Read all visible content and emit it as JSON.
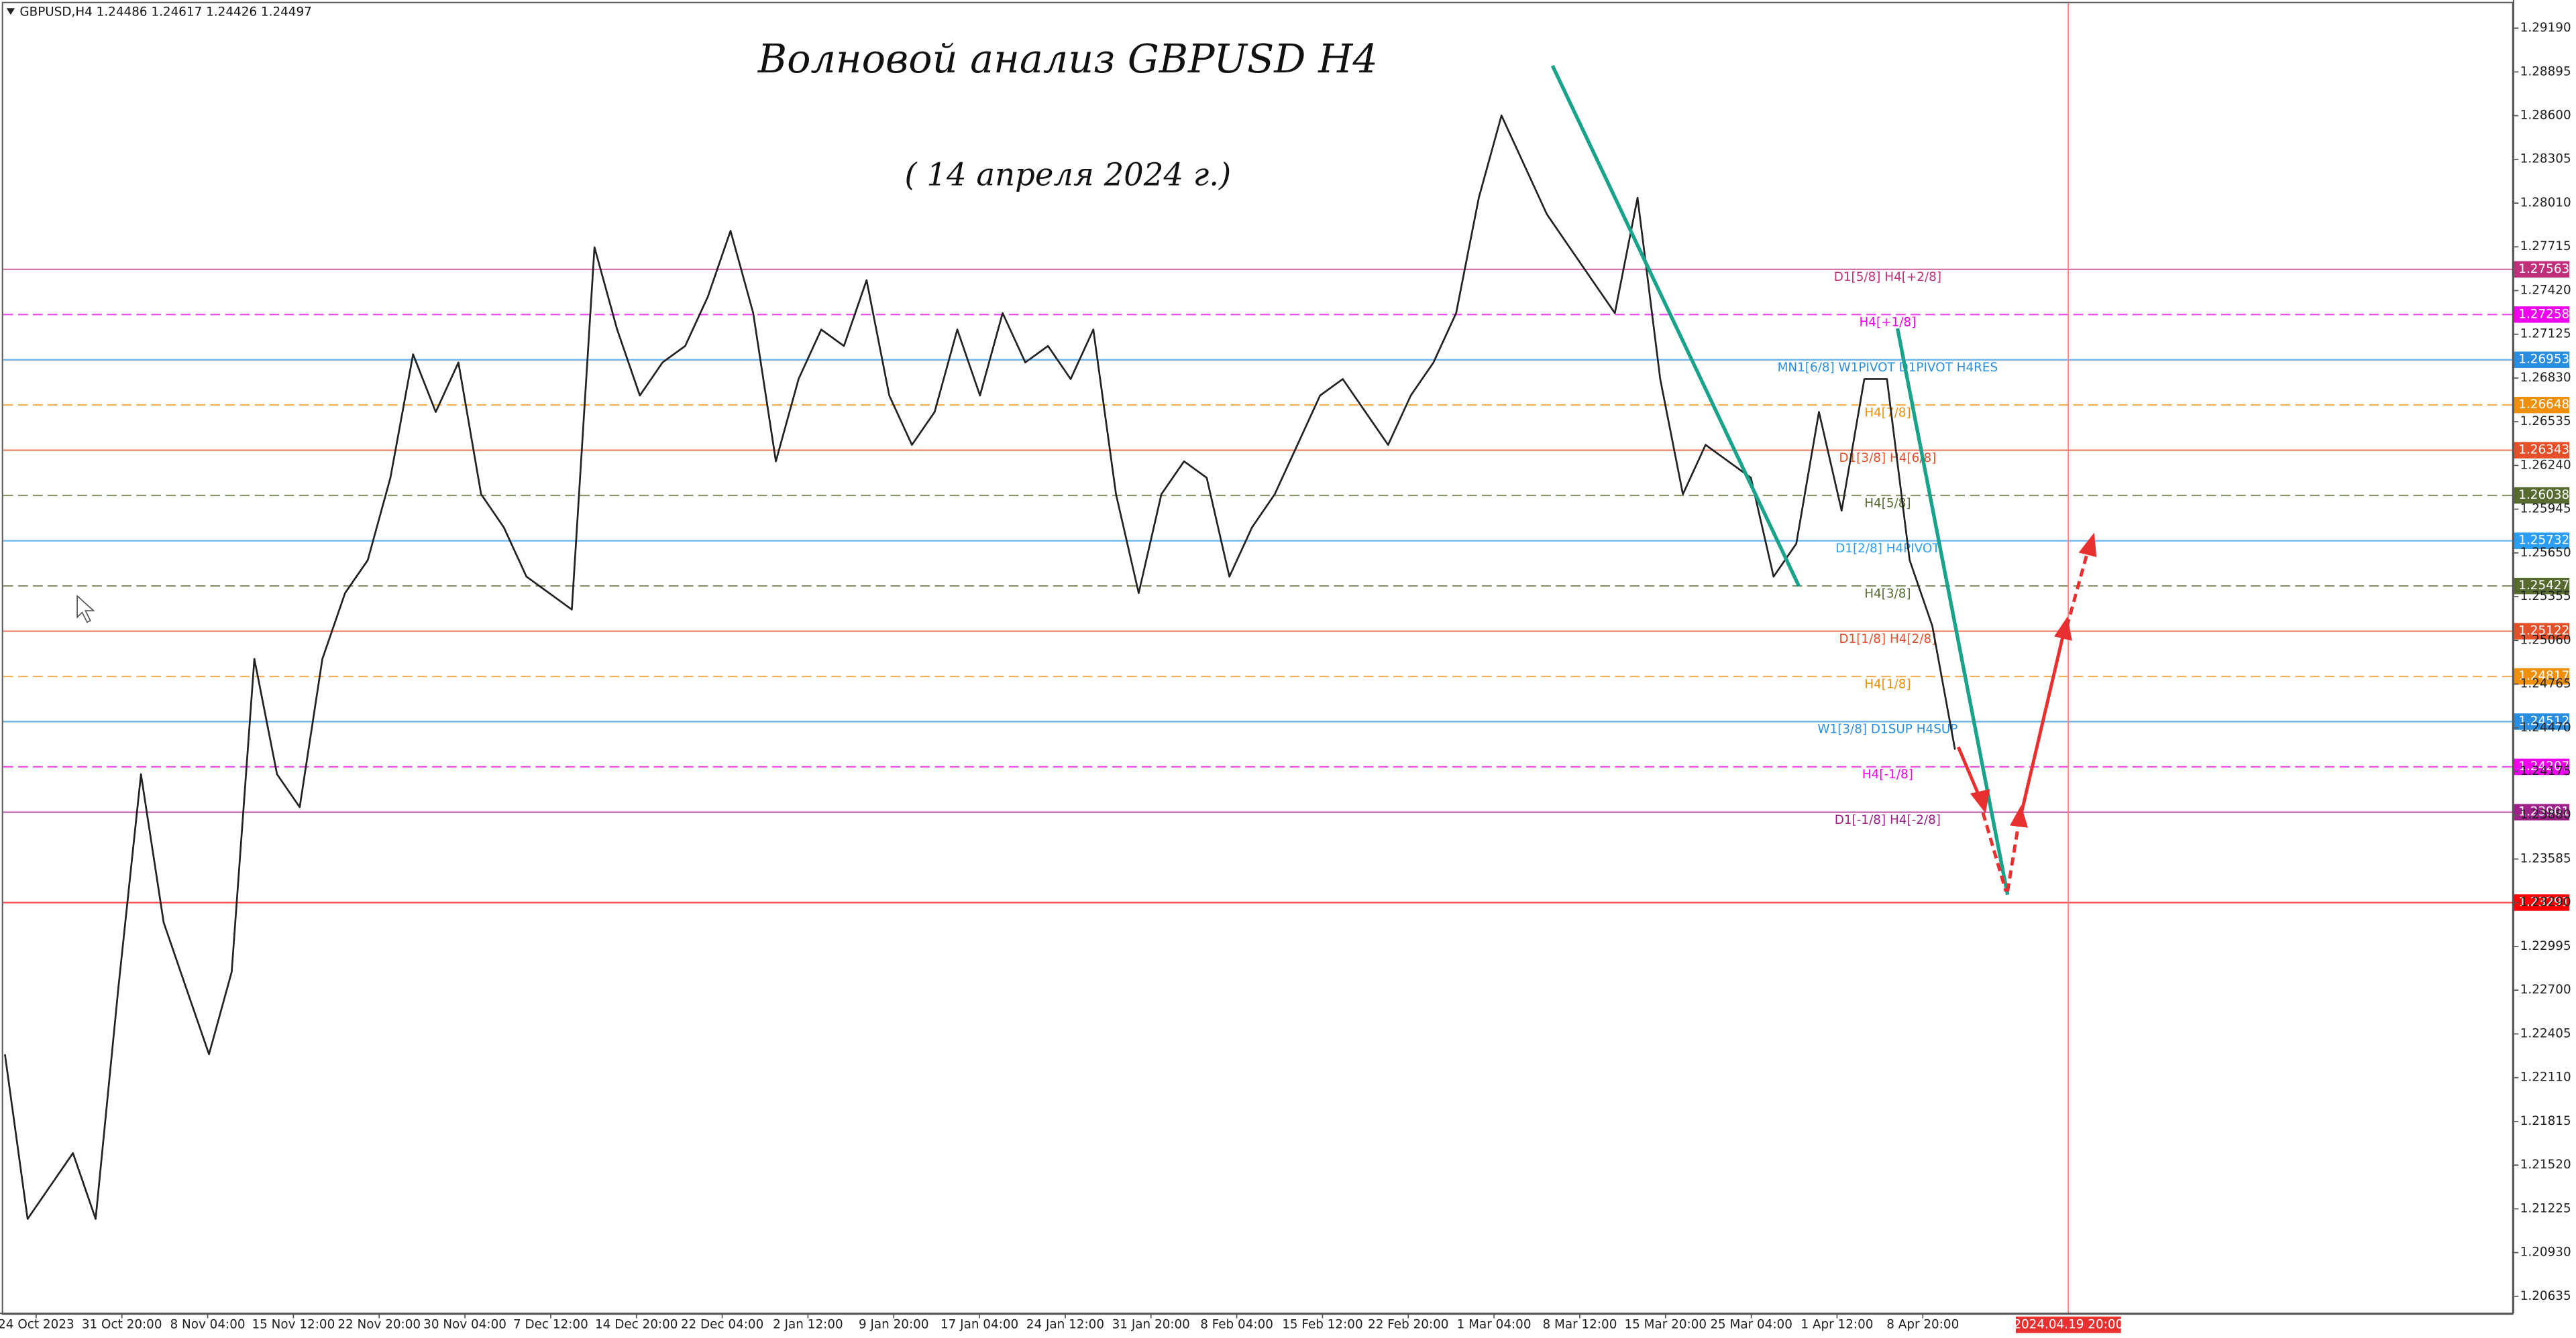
{
  "chart_data": {
    "type": "line",
    "header": "GBPUSD,H4  1.24486 1.24617 1.24426 1.24497",
    "title": "Волновой анализ GBPUSD H4",
    "subtitle": "( 14 апреля 2024 г.)",
    "color": "#222222",
    "values": [
      1.22268,
      1.21157,
      1.21379,
      1.21601,
      1.21157,
      1.22712,
      1.24157,
      1.23157,
      1.22712,
      1.22268,
      1.22823,
      1.24935,
      1.24157,
      1.23935,
      1.24935,
      1.25379,
      1.25601,
      1.26157,
      1.2699,
      1.26601,
      1.26935,
      1.26046,
      1.25823,
      1.2549,
      1.25379,
      1.25268,
      1.27712,
      1.27157,
      1.26712,
      1.26935,
      1.27046,
      1.27379,
      1.27823,
      1.27268,
      1.26268,
      1.26823,
      1.27157,
      1.27046,
      1.2749,
      1.26712,
      1.26379,
      1.26601,
      1.27157,
      1.26712,
      1.27268,
      1.26935,
      1.27046,
      1.26823,
      1.27157,
      1.26046,
      1.25379,
      1.26046,
      1.26268,
      1.26157,
      1.2549,
      1.25823,
      1.26046,
      1.26379,
      1.26712,
      1.26823,
      1.26601,
      1.26379,
      1.26712,
      1.26935,
      1.27268,
      1.28046,
      1.28601,
      1.28268,
      1.27935,
      1.27712,
      1.2749,
      1.27268,
      1.28046,
      1.26823,
      1.26046,
      1.26379,
      1.26268,
      1.26157,
      1.2549,
      1.25712,
      1.26601,
      1.25935,
      1.26823,
      1.26823,
      1.25601,
      1.25157,
      1.24323
    ],
    "ylim": [
      1.2052,
      1.2938
    ],
    "yticks": [
      {
        "value": 1.2919,
        "label": "1.29190"
      },
      1.28895,
      {
        "value": 1.286,
        "label": "1.28600"
      },
      1.28305,
      {
        "value": 1.2801,
        "label": "1.28010"
      },
      1.27715,
      {
        "value": 1.2742,
        "label": "1.27420"
      },
      1.27125,
      {
        "value": 1.2683,
        "label": "1.26830"
      },
      1.26535,
      {
        "value": 1.2624,
        "label": "1.26240"
      },
      1.25945,
      {
        "value": 1.2565,
        "label": "1.25650"
      },
      1.25355,
      {
        "value": 1.2506,
        "label": "1.25060"
      },
      1.24765,
      {
        "value": 1.2447,
        "label": "1.24470"
      },
      1.24175,
      {
        "value": 1.2388,
        "label": "1.23880"
      },
      1.23585,
      {
        "value": 1.2329,
        "label": "1.23290"
      },
      1.22995,
      {
        "value": 1.227,
        "label": "1.22700"
      },
      1.22405,
      {
        "value": 1.2211,
        "label": "1.22110"
      },
      1.21815,
      {
        "value": 1.2152,
        "label": "1.21520"
      },
      1.21225,
      {
        "value": 1.2093,
        "label": "1.20930"
      },
      1.20635
    ],
    "x_axis_labels": [
      "24 Oct 2023",
      "31 Oct 20:00",
      "8 Nov 04:00",
      "15 Nov 12:00",
      "22 Nov 20:00",
      "30 Nov 04:00",
      "7 Dec 12:00",
      "14 Dec 20:00",
      "22 Dec 04:00",
      "2 Jan 12:00",
      "9 Jan 20:00",
      "17 Jan 04:00",
      "24 Jan 12:00",
      "31 Jan 20:00",
      "8 Feb 04:00",
      "15 Feb 12:00",
      "22 Feb 20:00",
      "1 Mar 04:00",
      "8 Mar 12:00",
      "15 Mar 20:00",
      "25 Mar 04:00",
      "1 Apr 12:00",
      "8 Apr 20:00"
    ],
    "cursor_time": "2024.04.19 20:00",
    "levels": [
      {
        "value": 1.27563,
        "label": "D1[5/8] H4[+2/8]",
        "color": "#c0307a",
        "dashed": false
      },
      {
        "value": 1.27258,
        "label": "H4[+1/8]",
        "color": "#ee00ee",
        "dashed": true
      },
      {
        "value": 1.26953,
        "label": "MN1[6/8] W1PIVOT D1PIVOT H4RES",
        "color": "#2a8ee0",
        "dashed": false
      },
      {
        "value": 1.26648,
        "label": "H4[7/8]",
        "color": "#f0900a",
        "dashed": true
      },
      {
        "value": 1.26343,
        "label": "D1[3/8] H4[6/8]",
        "color": "#e4502a",
        "dashed": false
      },
      {
        "value": 1.26038,
        "label": "H4[5/8]",
        "color": "#556b2f",
        "dashed": true
      },
      {
        "value": 1.25732,
        "label": "D1[2/8] H4PIVOT",
        "color": "#2a9df4",
        "dashed": false
      },
      {
        "value": 1.25427,
        "label": "H4[3/8]",
        "color": "#556b2f",
        "dashed": true
      },
      {
        "value": 1.25122,
        "label": "D1[1/8] H4[2/8]",
        "color": "#e4502a",
        "dashed": false
      },
      {
        "value": 1.24817,
        "label": "H4[1/8]",
        "color": "#f0900a",
        "dashed": true
      },
      {
        "value": 1.24512,
        "label": "W1[3/8] D1SUP H4SUP",
        "color": "#2a8ee0",
        "dashed": false
      },
      {
        "value": 1.24207,
        "label": "H4[-1/8]",
        "color": "#ee00ee",
        "dashed": true
      },
      {
        "value": 1.23901,
        "label": "D1[-1/8] H4[-2/8]",
        "color": "#a0208a",
        "dashed": false
      },
      {
        "value": 1.23291,
        "color": "#ff0000",
        "dashed": false
      }
    ]
  }
}
